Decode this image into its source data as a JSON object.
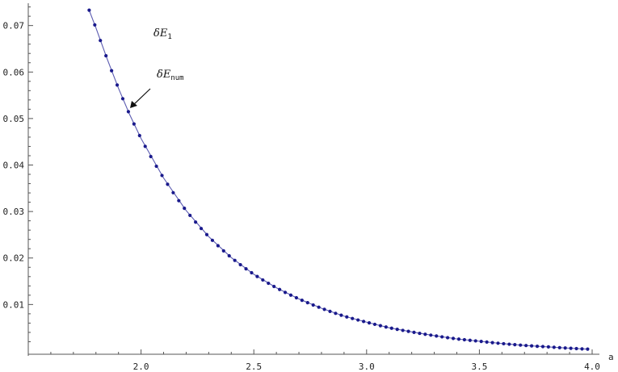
{
  "chart_data": {
    "type": "line",
    "title": "",
    "xlabel": "a",
    "ylabel": "",
    "xlim": [
      1.5,
      4.0
    ],
    "ylim": [
      -0.0007,
      0.0748
    ],
    "grid": false,
    "x_ticks": [
      "2.0",
      "2.5",
      "3.0",
      "3.5",
      "4.0"
    ],
    "y_ticks": [
      "0.01",
      "0.02",
      "0.03",
      "0.04",
      "0.05",
      "0.06",
      "0.07"
    ],
    "annotations": [
      {
        "symbol": "δE",
        "subscript": "1"
      },
      {
        "symbol": "δE",
        "subscript": "num"
      }
    ],
    "series": [
      {
        "style": "line",
        "color": "#5a5ab0",
        "x": [
          1.77,
          1.8,
          1.85,
          1.9,
          1.95,
          2.0,
          2.1,
          2.2,
          2.3,
          2.4,
          2.5,
          2.6,
          2.7,
          2.8,
          2.9,
          3.0,
          3.1,
          3.2,
          3.3,
          3.4,
          3.5,
          3.6,
          3.7,
          3.8,
          3.9,
          3.98
        ],
        "y": [
          0.0733,
          0.0695,
          0.0628,
          0.0565,
          0.0508,
          0.0457,
          0.0372,
          0.0302,
          0.0246,
          0.0201,
          0.0165,
          0.0136,
          0.0112,
          0.0092,
          0.0075,
          0.0062,
          0.005,
          0.0041,
          0.0033,
          0.0026,
          0.0021,
          0.0016,
          0.0012,
          0.0009,
          0.0006,
          0.0004
        ]
      },
      {
        "style": "points",
        "color": "#1a1a8c",
        "point_count": 90
      }
    ]
  }
}
